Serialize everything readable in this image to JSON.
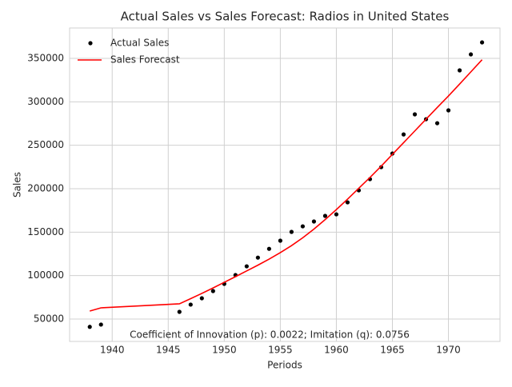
{
  "chart_data": {
    "type": "line",
    "title": "Actual Sales vs Sales Forecast: Radios in United States",
    "x_label": "Periods",
    "y_label": "Sales",
    "annotation": "Coefficient of Innovation (p): 0.0022; Imitation (q): 0.0756",
    "x": [
      1938,
      1939,
      1946,
      1947,
      1948,
      1949,
      1950,
      1951,
      1952,
      1953,
      1954,
      1955,
      1956,
      1957,
      1958,
      1959,
      1960,
      1961,
      1962,
      1963,
      1964,
      1965,
      1966,
      1967,
      1968,
      1969,
      1970,
      1971,
      1972,
      1973
    ],
    "series": [
      {
        "name": "Actual Sales",
        "color": "#000000",
        "mode": "scatter",
        "values": [
          41000,
          43600,
          58300,
          66600,
          73900,
          82200,
          90500,
          100600,
          110700,
          120700,
          130800,
          140200,
          150300,
          156700,
          162300,
          168700,
          170500,
          184300,
          198100,
          211000,
          224800,
          240500,
          262500,
          285600,
          280000,
          275400,
          290200,
          336200,
          354600,
          368400
        ]
      },
      {
        "name": "Sales Forecast",
        "color": "#ff0000",
        "mode": "line",
        "values": [
          59200,
          62900,
          67500,
          73500,
          79500,
          85800,
          92300,
          98800,
          105400,
          112000,
          119000,
          126400,
          134500,
          143500,
          153500,
          164500,
          176000,
          188000,
          200500,
          213000,
          226000,
          239500,
          253000,
          266500,
          280000,
          293500,
          306700,
          320500,
          334500,
          348500
        ]
      }
    ],
    "xlim": [
      1936.2,
      1974.6
    ],
    "xticks": [
      1940,
      1945,
      1950,
      1955,
      1960,
      1965,
      1970
    ],
    "ylim": [
      24230,
      385000
    ],
    "yticks": [
      50000,
      100000,
      150000,
      200000,
      250000,
      300000,
      350000
    ],
    "grid": true,
    "legend": "upper-left"
  }
}
